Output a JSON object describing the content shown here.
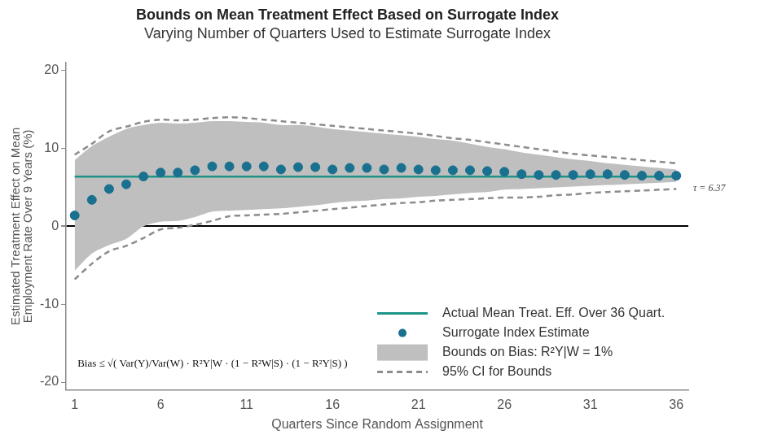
{
  "chart_data": {
    "type": "line",
    "title": "Bounds on Mean Treatment Effect Based on Surrogate Index",
    "subtitle": "Varying Number of Quarters Used to Estimate Surrogate Index",
    "x_label": "Quarters Since Random Assignment",
    "y_label": [
      "Estimated Treatment Effect on Mean",
      "Employment Rate Over 9 Years (%)"
    ],
    "x": [
      1,
      2,
      3,
      4,
      5,
      6,
      7,
      8,
      9,
      10,
      11,
      12,
      13,
      14,
      15,
      16,
      17,
      18,
      19,
      20,
      21,
      22,
      23,
      24,
      25,
      26,
      27,
      28,
      29,
      30,
      31,
      32,
      33,
      34,
      35,
      36
    ],
    "xlim": [
      0.5,
      36.7
    ],
    "xticks": [
      1,
      6,
      11,
      16,
      21,
      26,
      31,
      36
    ],
    "ylim": [
      -21,
      21
    ],
    "yticks": [
      -20,
      -10,
      0,
      10,
      20
    ],
    "grid": false,
    "legend": "lower right",
    "annotations": [
      "τ = 6.37",
      "Bias ≤ √( Var(Y)/Var(W) · R²Y|W · (1 − R²W|S) · (1 − R²Y|S) )"
    ],
    "series": [
      {
        "name": "Actual Mean Treat. Eff. Over 36 Quart.",
        "type": "line",
        "color": "#1e9488",
        "line_style": "solid",
        "values": [
          6.37,
          6.37,
          6.37,
          6.37,
          6.37,
          6.37,
          6.37,
          6.37,
          6.37,
          6.37,
          6.37,
          6.37,
          6.37,
          6.37,
          6.37,
          6.37,
          6.37,
          6.37,
          6.37,
          6.37,
          6.37,
          6.37,
          6.37,
          6.37,
          6.37,
          6.37,
          6.37,
          6.37,
          6.37,
          6.37,
          6.37,
          6.37,
          6.37,
          6.37,
          6.37,
          6.37
        ]
      },
      {
        "name": "Surrogate Index Estimate",
        "type": "scatter",
        "color": "#19708f",
        "marker": "circle",
        "values": [
          1.4,
          3.4,
          4.8,
          5.4,
          6.4,
          6.9,
          6.9,
          7.2,
          7.7,
          7.7,
          7.7,
          7.7,
          7.3,
          7.6,
          7.6,
          7.3,
          7.5,
          7.5,
          7.3,
          7.5,
          7.3,
          7.2,
          7.2,
          7.2,
          7.1,
          7.0,
          6.7,
          6.6,
          6.6,
          6.6,
          6.7,
          6.7,
          6.6,
          6.5,
          6.5,
          6.5
        ]
      },
      {
        "name": "Bounds on Bias: R²Y|W = 1%",
        "type": "band",
        "color": "#bfbfbf",
        "upper": [
          8.5,
          10.3,
          11.5,
          12.5,
          13.0,
          13.3,
          13.2,
          13.3,
          13.5,
          13.5,
          13.4,
          13.3,
          13.0,
          13.0,
          12.8,
          12.5,
          12.3,
          12.1,
          11.9,
          11.7,
          11.5,
          11.2,
          11.0,
          10.6,
          10.2,
          9.9,
          9.5,
          9.2,
          8.9,
          8.6,
          8.4,
          8.1,
          7.9,
          7.7,
          7.5,
          7.3
        ],
        "lower": [
          -5.7,
          -3.5,
          -2.4,
          -1.6,
          0.0,
          0.6,
          0.7,
          1.2,
          1.9,
          2.0,
          2.1,
          2.2,
          2.3,
          2.5,
          2.7,
          3.0,
          3.2,
          3.3,
          3.5,
          3.6,
          3.8,
          3.9,
          4.1,
          4.3,
          4.4,
          4.7,
          4.8,
          4.9,
          5.0,
          5.1,
          5.2,
          5.3,
          5.4,
          5.5,
          5.6,
          5.7
        ]
      },
      {
        "name": "95% CI for Bounds",
        "type": "line",
        "color": "#8c8c8c",
        "line_style": "dashed",
        "upper": [
          9.2,
          10.6,
          12.2,
          12.8,
          13.4,
          13.7,
          13.6,
          13.7,
          13.9,
          14.0,
          13.9,
          13.7,
          13.5,
          13.3,
          13.1,
          12.9,
          12.7,
          12.5,
          12.3,
          12.1,
          11.9,
          11.6,
          11.3,
          11.1,
          10.8,
          10.5,
          10.2,
          9.9,
          9.6,
          9.3,
          9.1,
          8.9,
          8.7,
          8.5,
          8.3,
          8.1
        ],
        "lower": [
          -6.8,
          -4.8,
          -3.2,
          -2.5,
          -1.5,
          -0.4,
          -0.2,
          0.2,
          0.7,
          1.3,
          1.4,
          1.5,
          1.6,
          1.8,
          2.0,
          2.2,
          2.4,
          2.6,
          2.8,
          3.0,
          3.1,
          3.3,
          3.4,
          3.5,
          3.6,
          3.7,
          3.7,
          3.8,
          4.0,
          4.1,
          4.3,
          4.4,
          4.5,
          4.6,
          4.7,
          4.8
        ]
      }
    ]
  }
}
